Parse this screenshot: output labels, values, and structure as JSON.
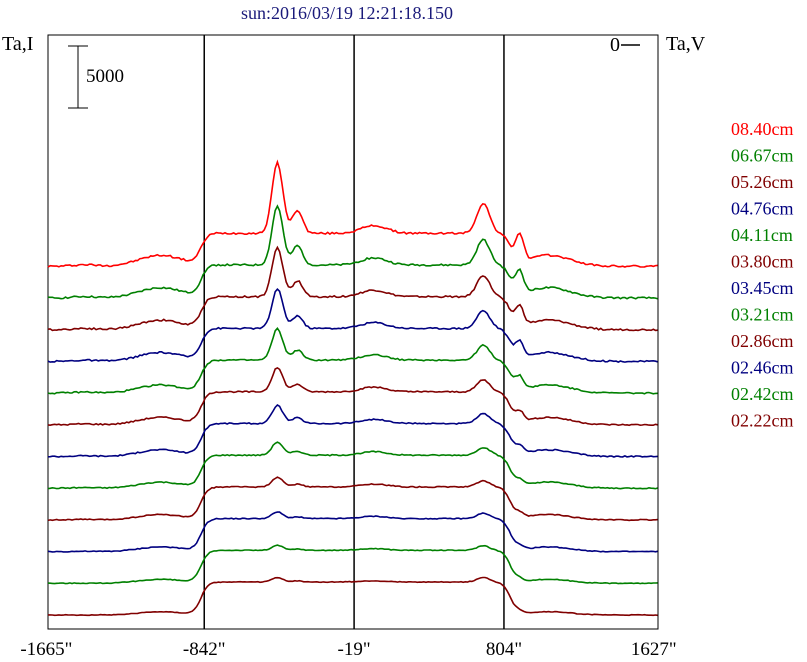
{
  "title": "sun:2016/03/19 12:21:18.150",
  "left_axis_label": "Ta,I",
  "right_axis_label": "Ta,V",
  "scale_bar_label": "5000",
  "zero_marker_label": "0",
  "x_tick_labels": [
    "-1665\"",
    "-842\"",
    "-19\"",
    "804\"",
    "1627\""
  ],
  "colors": {
    "red": "#ff0000",
    "green": "#008000",
    "darkred": "#800000",
    "blue": "#000080"
  },
  "chart_data": {
    "type": "line",
    "title": "sun:2016/03/19 12:21:18.150",
    "xlabel": "",
    "ylabel": "Ta,I",
    "y2label": "Ta,V",
    "x_range_arcsec": [
      -1700,
      1650
    ],
    "x_ticks": [
      -1665,
      -842,
      -19,
      804,
      1627
    ],
    "vertical_lines": [
      -842,
      -19,
      804
    ],
    "scale_bar": 5000,
    "legend_position": "right",
    "grid": false,
    "series": [
      {
        "name": "08.40cm",
        "color": "#ff0000"
      },
      {
        "name": "06.67cm",
        "color": "#008000"
      },
      {
        "name": "05.26cm",
        "color": "#800000"
      },
      {
        "name": "04.76cm",
        "color": "#000080"
      },
      {
        "name": "04.11cm",
        "color": "#008000"
      },
      {
        "name": "03.80cm",
        "color": "#800000"
      },
      {
        "name": "03.45cm",
        "color": "#000080"
      },
      {
        "name": "03.21cm",
        "color": "#008000"
      },
      {
        "name": "02.86cm",
        "color": "#800000"
      },
      {
        "name": "02.46cm",
        "color": "#000080"
      },
      {
        "name": "02.42cm",
        "color": "#008000"
      },
      {
        "name": "02.22cm",
        "color": "#800000"
      }
    ]
  }
}
